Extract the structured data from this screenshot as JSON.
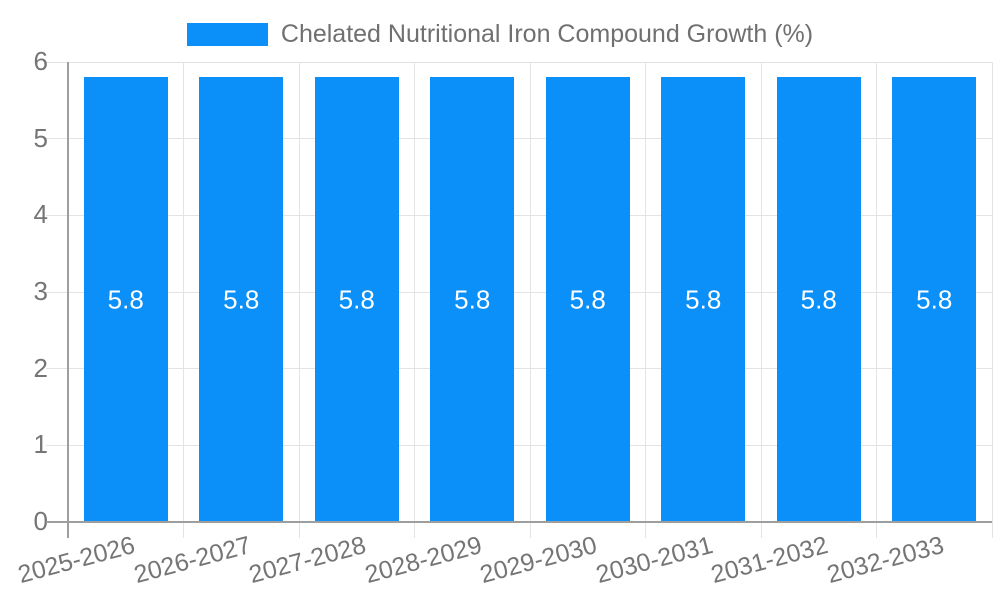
{
  "legend": {
    "label": "Chelated Nutritional Iron Compound Growth (%)"
  },
  "chart_data": {
    "type": "bar",
    "title": "Chelated Nutritional Iron Compound Growth (%)",
    "categories": [
      "2025-2026",
      "2026-2027",
      "2027-2028",
      "2028-2029",
      "2029-2030",
      "2030-2031",
      "2031-2032",
      "2032-2033"
    ],
    "series": [
      {
        "name": "Chelated Nutritional Iron Compound Growth (%)",
        "values": [
          5.8,
          5.8,
          5.8,
          5.8,
          5.8,
          5.8,
          5.8,
          5.8
        ]
      }
    ],
    "value_labels": [
      "5.8",
      "5.8",
      "5.8",
      "5.8",
      "5.8",
      "5.8",
      "5.8",
      "5.8"
    ],
    "xlabel": "",
    "ylabel": "",
    "ylim": [
      0,
      6
    ],
    "yticks": [
      0,
      1,
      2,
      3,
      4,
      5,
      6
    ],
    "ytick_labels": [
      "0",
      "1",
      "2",
      "3",
      "4",
      "5",
      "6"
    ],
    "grid": true,
    "legend_position": "top",
    "colors": {
      "bar": "#0a90f8",
      "grid": "#e3e3e3",
      "axis": "#9e9e9e",
      "tick_text": "#757575",
      "legend_text": "#707070",
      "bar_label": "#ffffff",
      "background": "#ffffff"
    }
  }
}
